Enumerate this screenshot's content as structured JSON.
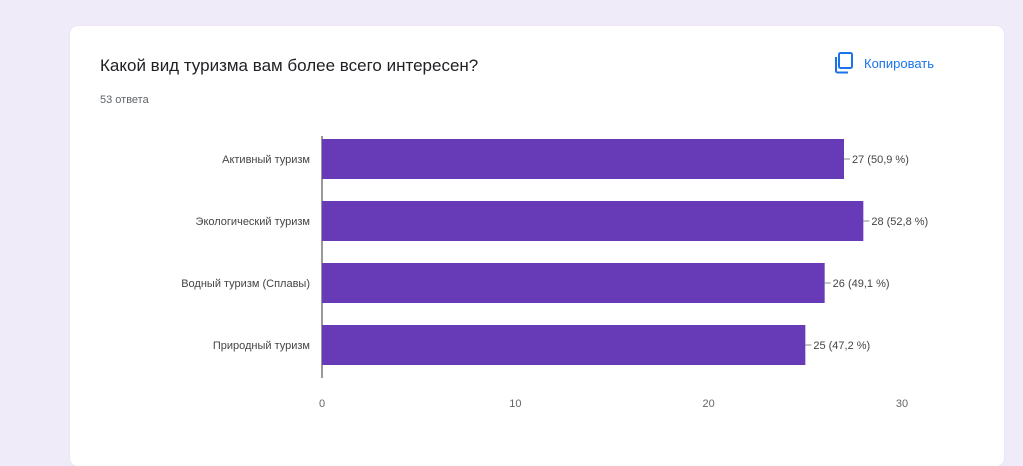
{
  "question": {
    "title": "Какой вид туризма вам более всего интересен?",
    "responses_count": "53 ответа"
  },
  "copy_button": {
    "label": "Копировать",
    "icon": "copy-icon"
  },
  "colors": {
    "bar": "#673ab7",
    "accent": "#1a73e8",
    "background": "#f0ebf8"
  },
  "chart_data": {
    "type": "bar",
    "orientation": "horizontal",
    "categories": [
      "Активный туризм",
      "Экологический туризм",
      "Водный туризм (Сплавы)",
      "Природный туризм"
    ],
    "values": [
      27,
      28,
      26,
      25
    ],
    "data_labels": [
      "27 (50,9 %)",
      "28 (52,8 %)",
      "26 (49,1 %)",
      "25 (47,2 %)"
    ],
    "xlim": [
      0,
      30
    ],
    "xticks": [
      "0",
      "10",
      "20",
      "30"
    ],
    "grid": false
  }
}
